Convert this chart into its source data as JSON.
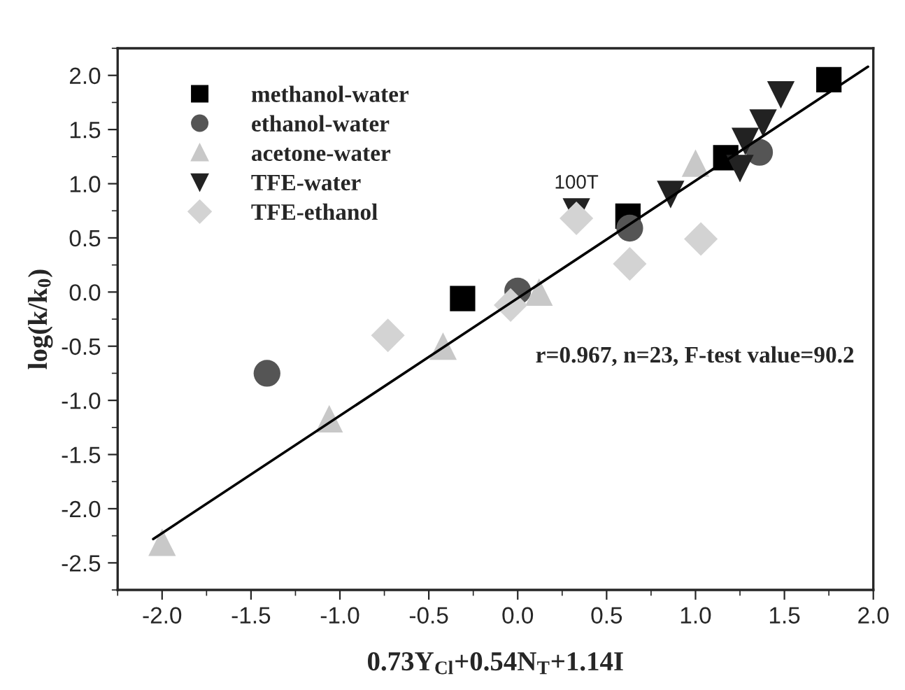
{
  "chart_data": {
    "type": "scatter",
    "xlabel": "0.73Y$_{Cl}$+0.54N$_{T}$+1.14I",
    "ylabel": "log(k/k$_{0}$)",
    "xlim": [
      -2.25,
      2.0
    ],
    "ylim": [
      -2.75,
      2.25
    ],
    "xticks": [
      {
        "value": -2,
        "label": "-2.0"
      },
      -1.5,
      {
        "value": -1,
        "label": "-1.0"
      },
      -0.5,
      {
        "value": 0,
        "label": "0.0"
      },
      0.5,
      {
        "value": 1,
        "label": "1.0"
      },
      1.5,
      {
        "value": 2,
        "label": "2.0"
      }
    ],
    "yticks": [
      -2.5,
      {
        "value": -2,
        "label": "-2.0"
      },
      -1.5,
      {
        "value": -1,
        "label": "-1.0"
      },
      -0.5,
      {
        "value": 0,
        "label": "0.0"
      },
      0.5,
      {
        "value": 1,
        "label": "1.0"
      },
      1.5,
      {
        "value": 2,
        "label": "2.0"
      }
    ],
    "legend": "top left",
    "grid": false,
    "annotations": [
      {
        "text": "100T",
        "x": 0.33,
        "y": 0.74
      },
      "r=0.967, n=23, F-test value=90.2"
    ],
    "series": [
      {
        "name": "methanol-water",
        "color": "#000000",
        "marker": "square",
        "x": [
          -0.31,
          0.62,
          1.17,
          1.75
        ],
        "values": [
          -0.06,
          0.7,
          1.24,
          1.96
        ]
      },
      {
        "name": "ethanol-water",
        "color": "#555555",
        "marker": "circle",
        "x": [
          -1.41,
          0.0,
          0.63,
          1.36
        ],
        "values": [
          -0.75,
          0.01,
          0.59,
          1.29
        ]
      },
      {
        "name": "acetone-water",
        "color": "#c8c8c8",
        "marker": "triangle",
        "x": [
          -2.0,
          -1.06,
          -0.42,
          0.12,
          1.0
        ],
        "values": [
          -2.31,
          -1.17,
          -0.5,
          0.0,
          1.19
        ]
      },
      {
        "name": "TFE-water",
        "color": "#222222",
        "marker": "triangle_down",
        "x": [
          0.33,
          0.86,
          1.25,
          1.28,
          1.38,
          1.48
        ],
        "values": [
          0.74,
          0.9,
          1.14,
          1.39,
          1.56,
          1.82
        ]
      },
      {
        "name": "TFE-ethanol",
        "color": "#d3d3d3",
        "marker": "diamond",
        "x": [
          -0.73,
          -0.04,
          0.33,
          0.63,
          1.03
        ],
        "values": [
          -0.4,
          -0.12,
          0.68,
          0.26,
          0.49
        ]
      },
      {
        "type": "line",
        "color": "#000000",
        "marker": "none",
        "line_style": "solid",
        "x": [
          -2.05,
          1.97
        ],
        "values": [
          -2.28,
          2.08
        ]
      }
    ]
  }
}
